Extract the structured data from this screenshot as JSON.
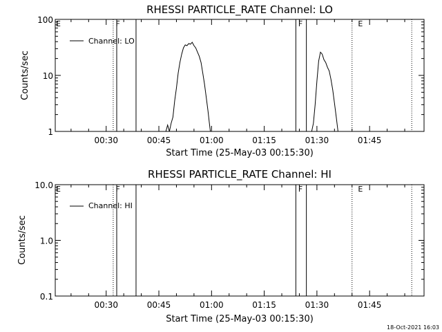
{
  "footer_timestamp": "18-Oct-2021 16:03",
  "chart_data": [
    {
      "type": "line",
      "title": "RHESSI PARTICLE_RATE Channel: LO",
      "xlabel": "Start Time (25-May-03 00:15:30)",
      "ylabel": "Counts/sec",
      "yscale": "log",
      "ylim": [
        1,
        100
      ],
      "xlim": [
        "00:15:30",
        "02:00:30"
      ],
      "x_ticks": [
        "00:30",
        "00:45",
        "01:00",
        "01:15",
        "01:30",
        "01:45"
      ],
      "y_ticks": [
        "1",
        "10",
        "100"
      ],
      "legend": {
        "entry": "Channel: LO",
        "placement": "top-left"
      },
      "grid": false,
      "series": [
        {
          "name": "Channel: LO",
          "segments": [
            [
              [
                "00:47:00",
                1.0
              ],
              [
                "00:47:30",
                1.3
              ],
              [
                "00:48:00",
                1.0
              ],
              [
                "00:48:30",
                1.4
              ],
              [
                "00:49:00",
                1.8
              ],
              [
                "00:49:30",
                3.5
              ],
              [
                "00:50:00",
                6.0
              ],
              [
                "00:50:30",
                11.0
              ],
              [
                "00:51:00",
                17.0
              ],
              [
                "00:51:30",
                24.0
              ],
              [
                "00:52:00",
                31.0
              ],
              [
                "00:52:30",
                35.0
              ],
              [
                "00:53:00",
                34.0
              ],
              [
                "00:53:30",
                37.0
              ],
              [
                "00:54:00",
                36.0
              ],
              [
                "00:54:30",
                39.0
              ],
              [
                "00:55:00",
                34.0
              ],
              [
                "00:55:30",
                31.0
              ],
              [
                "00:56:00",
                26.0
              ],
              [
                "00:56:30",
                22.0
              ],
              [
                "00:57:00",
                17.0
              ],
              [
                "00:57:30",
                11.0
              ],
              [
                "00:58:00",
                7.0
              ],
              [
                "00:58:30",
                4.0
              ],
              [
                "00:59:00",
                2.3
              ],
              [
                "00:59:30",
                1.2
              ],
              [
                "00:59:40",
                1.0
              ]
            ],
            [
              [
                "01:28:30",
                1.0
              ],
              [
                "01:29:00",
                1.4
              ],
              [
                "01:29:30",
                3.0
              ],
              [
                "01:30:00",
                8.0
              ],
              [
                "01:30:30",
                18.0
              ],
              [
                "01:31:00",
                26.0
              ],
              [
                "01:31:30",
                24.0
              ],
              [
                "01:32:00",
                19.0
              ],
              [
                "01:32:30",
                17.0
              ],
              [
                "01:33:00",
                14.0
              ],
              [
                "01:33:30",
                12.0
              ],
              [
                "01:34:00",
                8.5
              ],
              [
                "01:34:30",
                5.5
              ],
              [
                "01:35:00",
                3.2
              ],
              [
                "01:35:30",
                1.8
              ],
              [
                "01:36:00",
                1.0
              ]
            ]
          ]
        }
      ],
      "annotations": [
        {
          "label": "E",
          "time": "00:15:30"
        },
        {
          "label": "F",
          "time": "00:32:30"
        },
        {
          "label": "F",
          "time": "01:24:30"
        },
        {
          "label": "E",
          "time": "01:41:30"
        }
      ],
      "vlines": [
        {
          "time": "00:32:00",
          "style": "dotted"
        },
        {
          "time": "00:33:00",
          "style": "solid"
        },
        {
          "time": "00:38:30",
          "style": "solid"
        },
        {
          "time": "01:24:00",
          "style": "solid"
        },
        {
          "time": "01:27:00",
          "style": "solid"
        },
        {
          "time": "01:40:00",
          "style": "dotted"
        },
        {
          "time": "01:57:00",
          "style": "dotted"
        }
      ]
    },
    {
      "type": "line",
      "title": "RHESSI PARTICLE_RATE Channel: HI",
      "xlabel": "Start Time (25-May-03 00:15:30)",
      "ylabel": "Counts/sec",
      "yscale": "log",
      "ylim": [
        0.1,
        10.0
      ],
      "xlim": [
        "00:15:30",
        "02:00:30"
      ],
      "x_ticks": [
        "00:30",
        "00:45",
        "01:00",
        "01:15",
        "01:30",
        "01:45"
      ],
      "y_ticks": [
        "0.1",
        "1.0",
        "10.0"
      ],
      "legend": {
        "entry": "Channel: HI",
        "placement": "top-left"
      },
      "grid": false,
      "series": [
        {
          "name": "Channel: HI",
          "segments": []
        }
      ],
      "annotations": [
        {
          "label": "E",
          "time": "00:15:30"
        },
        {
          "label": "F",
          "time": "00:32:30"
        },
        {
          "label": "F",
          "time": "01:24:30"
        },
        {
          "label": "E",
          "time": "01:41:30"
        }
      ],
      "vlines": [
        {
          "time": "00:32:00",
          "style": "dotted"
        },
        {
          "time": "00:33:00",
          "style": "solid"
        },
        {
          "time": "00:38:30",
          "style": "solid"
        },
        {
          "time": "01:24:00",
          "style": "solid"
        },
        {
          "time": "01:27:00",
          "style": "solid"
        },
        {
          "time": "01:40:00",
          "style": "dotted"
        },
        {
          "time": "01:57:00",
          "style": "dotted"
        }
      ]
    }
  ]
}
